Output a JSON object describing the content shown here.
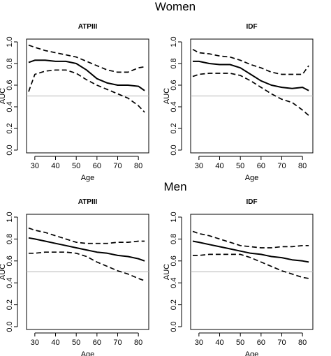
{
  "groups": [
    {
      "title": "Women"
    },
    {
      "title": "Men"
    }
  ],
  "chart_data": [
    {
      "type": "line",
      "title": "ATPIII",
      "xlabel": "Age",
      "ylabel": "AUC",
      "xlim": [
        26,
        85
      ],
      "ylim": [
        0,
        1.0
      ],
      "xticks": [
        "30",
        "40",
        "50",
        "60",
        "70",
        "80"
      ],
      "yticks": [
        "0.0",
        "0.2",
        "0.4",
        "0.6",
        "0.8",
        "1.0"
      ],
      "reference_line": 0.5,
      "grid": false,
      "x": [
        27,
        30,
        35,
        40,
        45,
        50,
        55,
        60,
        65,
        70,
        75,
        80,
        83
      ],
      "series": [
        {
          "style": "solid",
          "values": [
            0.81,
            0.83,
            0.83,
            0.82,
            0.82,
            0.8,
            0.74,
            0.66,
            0.62,
            0.6,
            0.6,
            0.59,
            0.55
          ]
        },
        {
          "style": "dashed",
          "values": [
            0.97,
            0.95,
            0.92,
            0.9,
            0.88,
            0.86,
            0.82,
            0.78,
            0.74,
            0.72,
            0.72,
            0.76,
            0.77
          ]
        },
        {
          "style": "dashed",
          "values": [
            0.54,
            0.7,
            0.73,
            0.74,
            0.74,
            0.71,
            0.65,
            0.6,
            0.56,
            0.52,
            0.48,
            0.41,
            0.35
          ]
        }
      ]
    },
    {
      "type": "line",
      "title": "IDF",
      "xlabel": "Age",
      "ylabel": "AUC",
      "xlim": [
        26,
        85
      ],
      "ylim": [
        0,
        1.0
      ],
      "xticks": [
        "30",
        "40",
        "50",
        "60",
        "70",
        "80"
      ],
      "yticks": [
        "0.0",
        "0.2",
        "0.4",
        "0.6",
        "0.8",
        "1.0"
      ],
      "reference_line": 0.5,
      "grid": false,
      "x": [
        27,
        30,
        35,
        40,
        45,
        50,
        55,
        60,
        65,
        70,
        75,
        80,
        83
      ],
      "series": [
        {
          "style": "solid",
          "values": [
            0.82,
            0.82,
            0.8,
            0.79,
            0.79,
            0.76,
            0.7,
            0.64,
            0.6,
            0.58,
            0.57,
            0.58,
            0.55
          ]
        },
        {
          "style": "dashed",
          "values": [
            0.93,
            0.9,
            0.89,
            0.87,
            0.86,
            0.83,
            0.79,
            0.76,
            0.72,
            0.7,
            0.7,
            0.7,
            0.78
          ]
        },
        {
          "style": "dashed",
          "values": [
            0.68,
            0.7,
            0.71,
            0.71,
            0.71,
            0.69,
            0.64,
            0.58,
            0.52,
            0.47,
            0.44,
            0.37,
            0.32
          ]
        }
      ]
    },
    {
      "type": "line",
      "title": "ATPIII",
      "xlabel": "Age",
      "ylabel": "AUC",
      "xlim": [
        26,
        85
      ],
      "ylim": [
        0,
        1.0
      ],
      "xticks": [
        "30",
        "40",
        "50",
        "60",
        "70",
        "80"
      ],
      "yticks": [
        "0.0",
        "0.2",
        "0.4",
        "0.6",
        "0.8",
        "1.0"
      ],
      "reference_line": 0.5,
      "grid": false,
      "x": [
        27,
        30,
        35,
        40,
        45,
        50,
        55,
        60,
        65,
        70,
        75,
        80,
        83
      ],
      "series": [
        {
          "style": "solid",
          "values": [
            0.81,
            0.8,
            0.78,
            0.76,
            0.74,
            0.72,
            0.7,
            0.68,
            0.67,
            0.65,
            0.64,
            0.62,
            0.6
          ]
        },
        {
          "style": "dashed",
          "values": [
            0.9,
            0.88,
            0.86,
            0.83,
            0.8,
            0.77,
            0.76,
            0.76,
            0.76,
            0.77,
            0.77,
            0.78,
            0.78
          ]
        },
        {
          "style": "dashed",
          "values": [
            0.67,
            0.67,
            0.68,
            0.68,
            0.68,
            0.67,
            0.64,
            0.59,
            0.55,
            0.51,
            0.48,
            0.44,
            0.42
          ]
        }
      ]
    },
    {
      "type": "line",
      "title": "IDF",
      "xlabel": "Age",
      "ylabel": "AUC",
      "xlim": [
        26,
        85
      ],
      "ylim": [
        0,
        1.0
      ],
      "xticks": [
        "30",
        "40",
        "50",
        "60",
        "70",
        "80"
      ],
      "yticks": [
        "0.0",
        "0.2",
        "0.4",
        "0.6",
        "0.8",
        "1.0"
      ],
      "reference_line": 0.5,
      "grid": false,
      "x": [
        27,
        30,
        35,
        40,
        45,
        50,
        55,
        60,
        65,
        70,
        75,
        80,
        83
      ],
      "series": [
        {
          "style": "solid",
          "values": [
            0.78,
            0.77,
            0.75,
            0.73,
            0.71,
            0.69,
            0.67,
            0.66,
            0.64,
            0.63,
            0.61,
            0.6,
            0.59
          ]
        },
        {
          "style": "dashed",
          "values": [
            0.87,
            0.85,
            0.83,
            0.8,
            0.77,
            0.74,
            0.73,
            0.72,
            0.72,
            0.73,
            0.73,
            0.74,
            0.74
          ]
        },
        {
          "style": "dashed",
          "values": [
            0.65,
            0.65,
            0.66,
            0.66,
            0.66,
            0.66,
            0.63,
            0.59,
            0.55,
            0.51,
            0.48,
            0.45,
            0.44
          ]
        }
      ]
    }
  ]
}
